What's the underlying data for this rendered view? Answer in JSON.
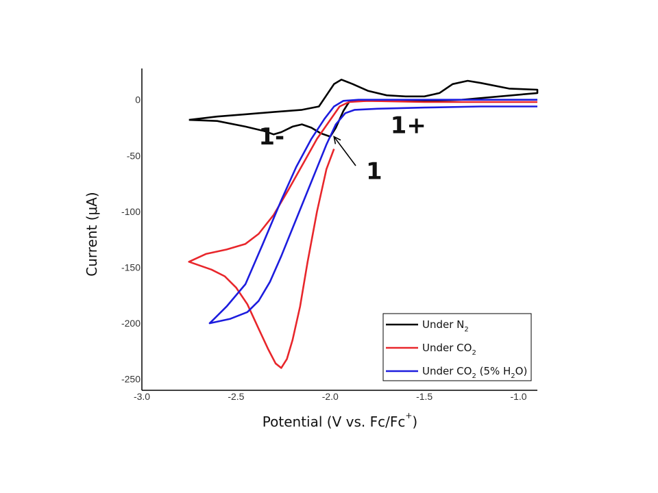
{
  "chart_data": {
    "type": "line",
    "xlabel": {
      "main": "Potential (V vs. Fc/Fc",
      "sup": "+",
      "close": ")"
    },
    "ylabel": "Current (μA)",
    "xlim": [
      -3.0,
      -0.9
    ],
    "ylim": [
      -260,
      28
    ],
    "xticks": [
      -3.0,
      -2.5,
      -2.0,
      -1.5,
      -1.0
    ],
    "xtick_labels": [
      "-3.0",
      "-2.5",
      "-2.0",
      "-1.5",
      "-1.0"
    ],
    "yticks": [
      0,
      -50,
      -100,
      -150,
      -200,
      -250
    ],
    "ytick_labels": [
      "0",
      "-50",
      "-100",
      "-150",
      "-200",
      "-250"
    ],
    "grid": false,
    "legend_position": "bottom-right",
    "annotations": [
      {
        "text": "1-",
        "x": -2.38,
        "y": -40
      },
      {
        "text": "1+",
        "x": -1.68,
        "y": -30
      },
      {
        "text": "1",
        "x": -1.81,
        "y": -71,
        "arrow_to": [
          -1.98,
          -33
        ]
      }
    ],
    "series": [
      {
        "name": "Under N",
        "subscript": "2",
        "suffix": "",
        "color": "#000000",
        "points": [
          [
            -2.75,
            -18
          ],
          [
            -2.6,
            -19
          ],
          [
            -2.45,
            -24
          ],
          [
            -2.35,
            -28
          ],
          [
            -2.3,
            -31
          ],
          [
            -2.26,
            -29
          ],
          [
            -2.2,
            -24
          ],
          [
            -2.15,
            -22
          ],
          [
            -2.1,
            -25
          ],
          [
            -2.05,
            -30
          ],
          [
            -2.0,
            -33
          ],
          [
            -1.97,
            -25
          ],
          [
            -1.93,
            -10
          ],
          [
            -1.9,
            -2
          ],
          [
            -1.85,
            -1
          ],
          [
            -1.7,
            -1
          ],
          [
            -1.5,
            -1
          ],
          [
            -1.3,
            0
          ],
          [
            -1.1,
            3
          ],
          [
            -0.9,
            6
          ],
          [
            -0.9,
            9
          ],
          [
            -1.05,
            10
          ],
          [
            -1.2,
            15
          ],
          [
            -1.27,
            17
          ],
          [
            -1.35,
            14
          ],
          [
            -1.42,
            6
          ],
          [
            -1.5,
            3
          ],
          [
            -1.6,
            3
          ],
          [
            -1.7,
            4
          ],
          [
            -1.8,
            8
          ],
          [
            -1.88,
            14
          ],
          [
            -1.94,
            18
          ],
          [
            -1.98,
            14
          ],
          [
            -2.02,
            4
          ],
          [
            -2.06,
            -6
          ],
          [
            -2.15,
            -9
          ],
          [
            -2.3,
            -11
          ],
          [
            -2.45,
            -13
          ],
          [
            -2.6,
            -15
          ],
          [
            -2.75,
            -18
          ]
        ]
      },
      {
        "name": "Under CO",
        "subscript": "2",
        "suffix": "",
        "color": "#e8262b",
        "points": [
          [
            -1.98,
            -44
          ],
          [
            -2.02,
            -62
          ],
          [
            -2.07,
            -100
          ],
          [
            -2.12,
            -145
          ],
          [
            -2.16,
            -185
          ],
          [
            -2.2,
            -215
          ],
          [
            -2.23,
            -232
          ],
          [
            -2.26,
            -240
          ],
          [
            -2.29,
            -236
          ],
          [
            -2.33,
            -223
          ],
          [
            -2.38,
            -205
          ],
          [
            -2.44,
            -183
          ],
          [
            -2.5,
            -168
          ],
          [
            -2.56,
            -158
          ],
          [
            -2.63,
            -152
          ],
          [
            -2.75,
            -145
          ],
          [
            -2.66,
            -138
          ],
          [
            -2.55,
            -134
          ],
          [
            -2.45,
            -129
          ],
          [
            -2.38,
            -120
          ],
          [
            -2.3,
            -103
          ],
          [
            -2.22,
            -80
          ],
          [
            -2.14,
            -56
          ],
          [
            -2.07,
            -35
          ],
          [
            -2.0,
            -18
          ],
          [
            -1.95,
            -6
          ],
          [
            -1.9,
            -2
          ],
          [
            -1.8,
            -1
          ],
          [
            -1.5,
            -2
          ],
          [
            -1.2,
            -2
          ],
          [
            -0.9,
            -2
          ]
        ]
      },
      {
        "name": "Under CO",
        "subscript": "2",
        "suffix": " (5% H",
        "subscript2": "2",
        "suffix2": "O)",
        "color": "#1c1cde",
        "points": [
          [
            -0.9,
            -6
          ],
          [
            -1.2,
            -6
          ],
          [
            -1.5,
            -7
          ],
          [
            -1.75,
            -8
          ],
          [
            -1.87,
            -9
          ],
          [
            -1.92,
            -12
          ],
          [
            -1.97,
            -22
          ],
          [
            -2.02,
            -40
          ],
          [
            -2.08,
            -65
          ],
          [
            -2.14,
            -90
          ],
          [
            -2.2,
            -115
          ],
          [
            -2.26,
            -140
          ],
          [
            -2.32,
            -163
          ],
          [
            -2.38,
            -180
          ],
          [
            -2.44,
            -190
          ],
          [
            -2.53,
            -196
          ],
          [
            -2.64,
            -200
          ],
          [
            -2.61,
            -195
          ],
          [
            -2.55,
            -185
          ],
          [
            -2.45,
            -165
          ],
          [
            -2.36,
            -130
          ],
          [
            -2.26,
            -90
          ],
          [
            -2.18,
            -60
          ],
          [
            -2.1,
            -35
          ],
          [
            -2.03,
            -17
          ],
          [
            -1.98,
            -6
          ],
          [
            -1.93,
            -1
          ],
          [
            -1.85,
            0
          ],
          [
            -1.5,
            0
          ],
          [
            -1.2,
            0
          ],
          [
            -0.9,
            0
          ]
        ]
      }
    ]
  }
}
